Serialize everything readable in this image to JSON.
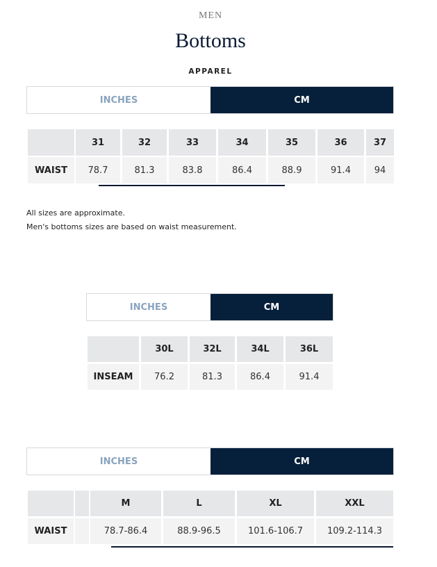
{
  "header": {
    "section": "MEN",
    "title": "Bottoms",
    "category": "APPAREL"
  },
  "toggle": {
    "inches": "INCHES",
    "cm": "CM",
    "selected": "CM"
  },
  "waist_table": {
    "row_label": "WAIST",
    "sizes": [
      "31",
      "32",
      "33",
      "34",
      "35",
      "36",
      "37"
    ],
    "values": [
      "78.7",
      "81.3",
      "83.8",
      "86.4",
      "88.9",
      "91.4",
      "94"
    ]
  },
  "notes": [
    "All sizes are approximate.",
    "Men's bottoms sizes are based on waist measurement."
  ],
  "inseam_table": {
    "row_label": "INSEAM",
    "sizes": [
      "30L",
      "32L",
      "34L",
      "36L"
    ],
    "values": [
      "76.2",
      "81.3",
      "86.4",
      "91.4"
    ]
  },
  "alpha_table": {
    "row_label": "WAIST",
    "sizes": [
      "M",
      "L",
      "XL",
      "XXL"
    ],
    "values": [
      "78.7-86.4",
      "88.9-96.5",
      "101.6-106.7",
      "109.2-114.3"
    ]
  },
  "colors": {
    "accent": "#061f3b",
    "inactive_text": "#8aa3bf",
    "header_bg": "#e6e7e9"
  }
}
